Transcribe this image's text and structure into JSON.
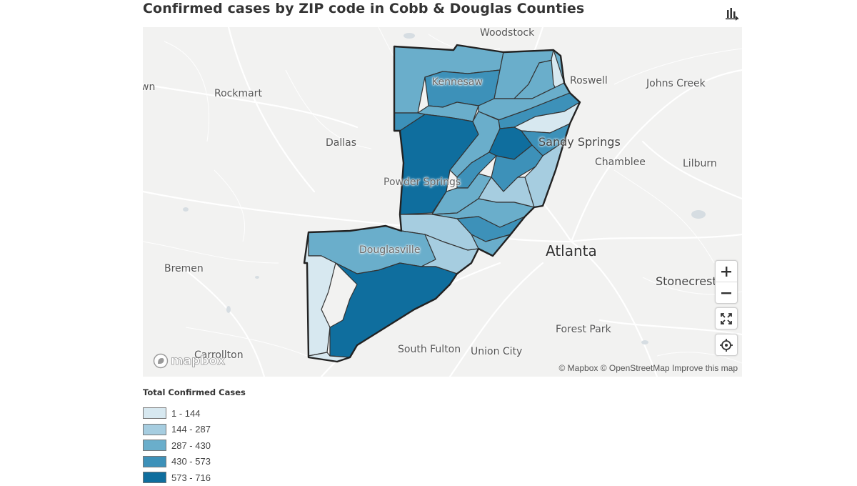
{
  "title": "Confirmed cases by ZIP code in Cobb & Douglas Counties",
  "toolbar": {
    "chart_toggle_icon": "bar-chart-icon"
  },
  "map": {
    "places": [
      {
        "id": "woodstock",
        "label": "Woodstock"
      },
      {
        "id": "roswell",
        "label": "Roswell"
      },
      {
        "id": "johns-creek",
        "label": "Johns Creek"
      },
      {
        "id": "kennesaw",
        "label": "Kennesaw"
      },
      {
        "id": "rockmart",
        "label": "Rockmart"
      },
      {
        "id": "dallas",
        "label": "Dallas"
      },
      {
        "id": "sandy-springs",
        "label": "Sandy Springs"
      },
      {
        "id": "chamblee",
        "label": "Chamblee"
      },
      {
        "id": "lilburn",
        "label": "Lilburn"
      },
      {
        "id": "powder-springs",
        "label": "Powder Springs"
      },
      {
        "id": "atlanta",
        "label": "Atlanta"
      },
      {
        "id": "douglasville",
        "label": "Douglasville"
      },
      {
        "id": "bremen",
        "label": "Bremen"
      },
      {
        "id": "stonecrest",
        "label": "Stonecrest"
      },
      {
        "id": "forest-park",
        "label": "Forest Park"
      },
      {
        "id": "carrollton",
        "label": "Carrollton"
      },
      {
        "id": "south-fulton",
        "label": "South Fulton"
      },
      {
        "id": "union-city",
        "label": "Union City"
      },
      {
        "id": "edge-left",
        "label": "wn"
      }
    ],
    "controls": {
      "zoom_in": "+",
      "zoom_out": "−",
      "icons": [
        "plus-icon",
        "minus-icon",
        "fullscreen-icon",
        "geolocate-icon"
      ]
    },
    "logo": "mapbox",
    "attribution": {
      "mapbox": "© Mapbox",
      "osm": "© OpenStreetMap",
      "improve": "Improve this map"
    }
  },
  "legend": {
    "title": "Total Confirmed Cases",
    "bins": [
      {
        "label": "1 - 144",
        "color": "#d7e8f0"
      },
      {
        "label": "144 - 287",
        "color": "#a6cde0"
      },
      {
        "label": "287 - 430",
        "color": "#6aaecb"
      },
      {
        "label": "430 - 573",
        "color": "#3d91b9"
      },
      {
        "label": "573 - 716",
        "color": "#0f6e9e"
      }
    ]
  }
}
